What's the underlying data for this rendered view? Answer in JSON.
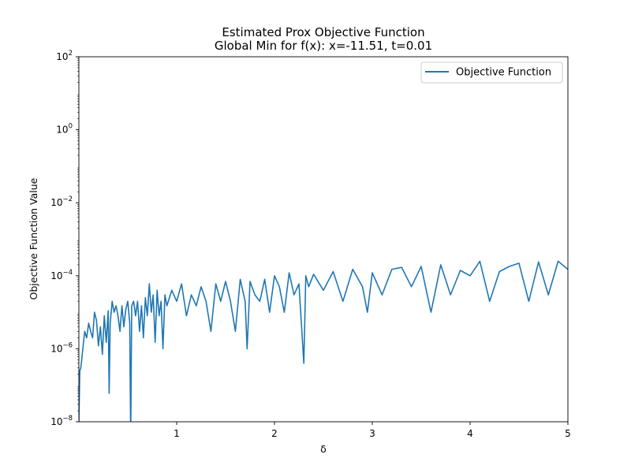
{
  "chart_data": {
    "type": "line",
    "title": "Estimated Prox Objective Function",
    "subtitle": "Global Min for f(x): x=-11.51, t=0.01",
    "xlabel": "δ",
    "ylabel": "Objective Function Value",
    "xlim": [
      0.0,
      5.0
    ],
    "ylim": [
      1e-08,
      100
    ],
    "yscale": "log",
    "grid": false,
    "legend": {
      "position": "top-right",
      "entries": [
        "Objective Function"
      ]
    },
    "x_ticks": [
      {
        "value": 1,
        "label": "1"
      },
      {
        "value": 2,
        "label": "2"
      },
      {
        "value": 3,
        "label": "3"
      },
      {
        "value": 4,
        "label": "4"
      },
      {
        "value": 5,
        "label": "5"
      }
    ],
    "y_ticks": [
      {
        "value": 1e-08,
        "base": "10",
        "exp": "−8"
      },
      {
        "value": 1e-06,
        "base": "10",
        "exp": "−6"
      },
      {
        "value": 0.0001,
        "base": "10",
        "exp": "−4"
      },
      {
        "value": 0.01,
        "base": "10",
        "exp": "−2"
      },
      {
        "value": 1,
        "base": "10",
        "exp": "0"
      },
      {
        "value": 100,
        "base": "10",
        "exp": "2"
      }
    ],
    "series": [
      {
        "name": "Objective Function",
        "color": "#1f77b4",
        "x": [
          0.0,
          0.01,
          0.02,
          0.04,
          0.06,
          0.08,
          0.1,
          0.12,
          0.14,
          0.16,
          0.18,
          0.2,
          0.22,
          0.24,
          0.26,
          0.28,
          0.3,
          0.31,
          0.32,
          0.34,
          0.36,
          0.38,
          0.4,
          0.42,
          0.44,
          0.46,
          0.48,
          0.5,
          0.52,
          0.53,
          0.54,
          0.56,
          0.58,
          0.6,
          0.62,
          0.64,
          0.66,
          0.68,
          0.7,
          0.72,
          0.74,
          0.76,
          0.78,
          0.8,
          0.82,
          0.84,
          0.86,
          0.88,
          0.9,
          0.95,
          1.0,
          1.05,
          1.1,
          1.15,
          1.2,
          1.25,
          1.3,
          1.35,
          1.4,
          1.45,
          1.5,
          1.55,
          1.6,
          1.65,
          1.7,
          1.72,
          1.75,
          1.8,
          1.85,
          1.9,
          1.95,
          2.0,
          2.05,
          2.1,
          2.15,
          2.2,
          2.25,
          2.3,
          2.32,
          2.35,
          2.4,
          2.5,
          2.6,
          2.7,
          2.8,
          2.9,
          2.95,
          3.0,
          3.1,
          3.2,
          3.3,
          3.4,
          3.5,
          3.6,
          3.7,
          3.8,
          3.9,
          4.0,
          4.1,
          4.2,
          4.3,
          4.4,
          4.5,
          4.6,
          4.7,
          4.8,
          4.9,
          5.0
        ],
        "y": [
          1e-08,
          2.5e-07,
          3e-07,
          1e-06,
          3e-06,
          2e-06,
          5e-06,
          3e-06,
          2e-06,
          1e-05,
          6e-06,
          1.2e-06,
          4e-06,
          7e-07,
          8e-06,
          1.5e-06,
          1.1e-05,
          6e-08,
          5e-06,
          2e-05,
          1e-05,
          1.5e-05,
          8e-06,
          3e-06,
          1.5e-05,
          4e-06,
          1.2e-05,
          2e-05,
          5e-06,
          1e-09,
          1.5e-05,
          2e-05,
          8e-06,
          2e-05,
          3e-06,
          1.5e-05,
          2e-06,
          2.5e-05,
          8e-06,
          6e-05,
          1e-05,
          3e-05,
          1.5e-06,
          4e-05,
          8e-06,
          2e-05,
          1e-06,
          3e-05,
          1.5e-05,
          4e-05,
          2e-05,
          6e-05,
          8e-06,
          3e-05,
          1.5e-05,
          5e-05,
          2e-05,
          3e-06,
          6e-05,
          2e-05,
          7e-05,
          2e-05,
          3e-06,
          8e-05,
          2e-05,
          1e-06,
          7e-05,
          3e-05,
          2e-05,
          8e-05,
          1e-05,
          0.0001,
          5e-05,
          1e-05,
          0.00012,
          3e-05,
          6e-05,
          4e-07,
          0.0001,
          5e-05,
          0.00011,
          4e-05,
          0.00013,
          2e-05,
          0.00015,
          5e-05,
          1e-05,
          0.00012,
          3e-05,
          0.00015,
          0.00017,
          5e-05,
          0.00018,
          1e-05,
          0.0002,
          3e-05,
          0.00014,
          0.0001,
          0.00025,
          2e-05,
          0.00013,
          0.00018,
          0.00022,
          2e-05,
          0.00024,
          3e-05,
          0.00025,
          0.00015
        ]
      }
    ]
  }
}
